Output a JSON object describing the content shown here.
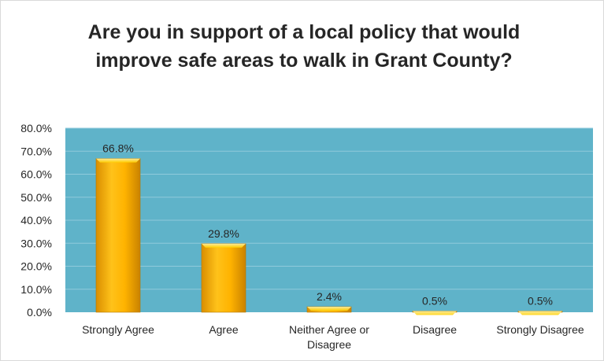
{
  "chart_data": {
    "type": "bar",
    "title": "Are you in support of a local policy that would improve safe areas to walk in Grant County?",
    "categories": [
      "Strongly Agree",
      "Agree",
      "Neither Agree or Disagree",
      "Disagree",
      "Strongly Disagree"
    ],
    "values": [
      66.8,
      29.8,
      2.4,
      0.5,
      0.5
    ],
    "data_labels": [
      "66.8%",
      "29.8%",
      "2.4%",
      "0.5%",
      "0.5%"
    ],
    "ylim": [
      0,
      80
    ],
    "y_ticks": [
      "0.0%",
      "10.0%",
      "20.0%",
      "30.0%",
      "40.0%",
      "50.0%",
      "60.0%",
      "70.0%",
      "80.0%"
    ],
    "xlabel": "",
    "ylabel": "",
    "grid": true,
    "legend": "none",
    "colors": {
      "plot_background": "#5fb3c9",
      "gridline": "#8fcadb",
      "bar_fill": "#f7b500",
      "bar_light": "#ffd54a",
      "bar_dark": "#d98e00"
    }
  }
}
